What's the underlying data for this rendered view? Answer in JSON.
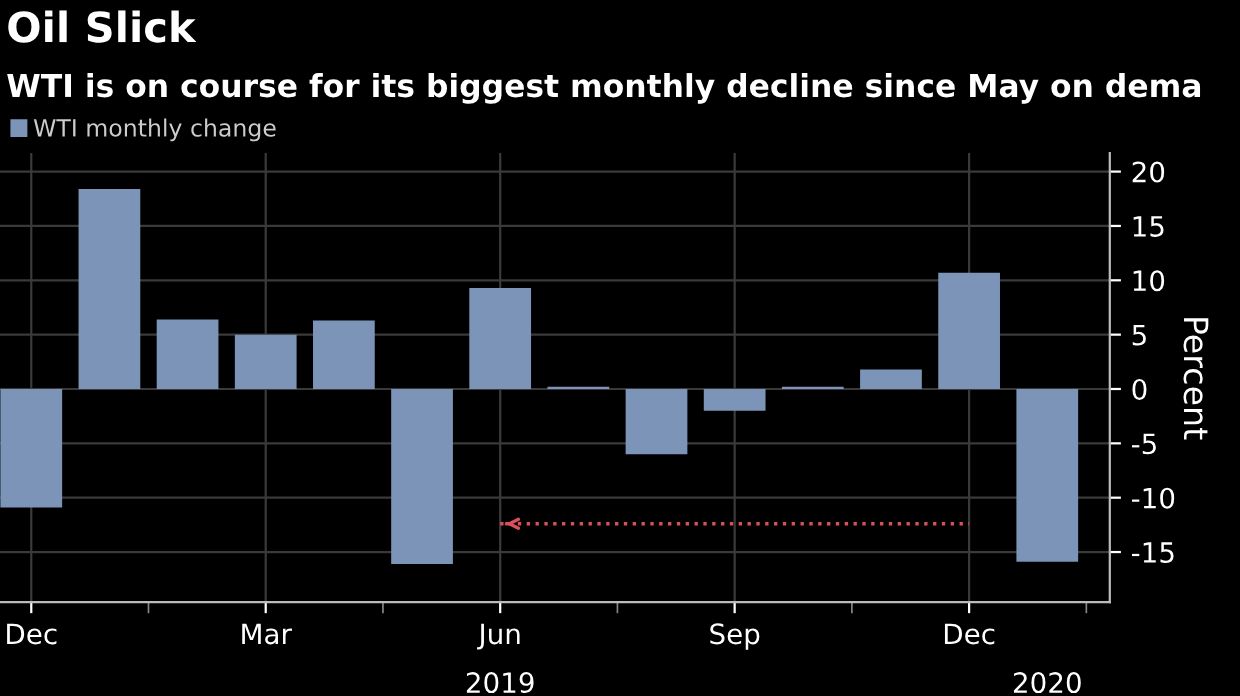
{
  "chart_data": {
    "type": "bar",
    "title": "Oil Slick",
    "subtitle": "WTI is on course for its biggest monthly decline since May on dema",
    "ylabel": "Percent",
    "categories": [
      "Dec",
      null,
      null,
      "Mar",
      null,
      null,
      "Jun",
      null,
      null,
      "Sep",
      null,
      null,
      "Dec",
      null
    ],
    "series": [
      {
        "name": "WTI monthly change",
        "color": "#7b94b8",
        "values": [
          -10.9,
          18.4,
          6.4,
          5.0,
          6.3,
          -16.1,
          9.3,
          0.2,
          -6.0,
          -2.0,
          0.2,
          1.8,
          10.7,
          -15.9
        ]
      },
      {
        "type": "line",
        "color": "#d9505a",
        "line_style": "dotted",
        "values": [
          null,
          null,
          null,
          null,
          null,
          null,
          -12.4,
          -12.4,
          -12.4,
          -12.4,
          -12.4,
          -12.4,
          -12.4,
          null
        ]
      }
    ],
    "annotations": [
      "2019",
      "2020"
    ],
    "ylim": [
      -19.6,
      21.7
    ],
    "yticks": [
      {
        "value": -15,
        "label": "-15"
      },
      {
        "value": -10,
        "label": "-10"
      },
      {
        "value": -5,
        "label": "-5"
      },
      0,
      5,
      10,
      15,
      20
    ],
    "grid": true,
    "legend": "top left"
  }
}
